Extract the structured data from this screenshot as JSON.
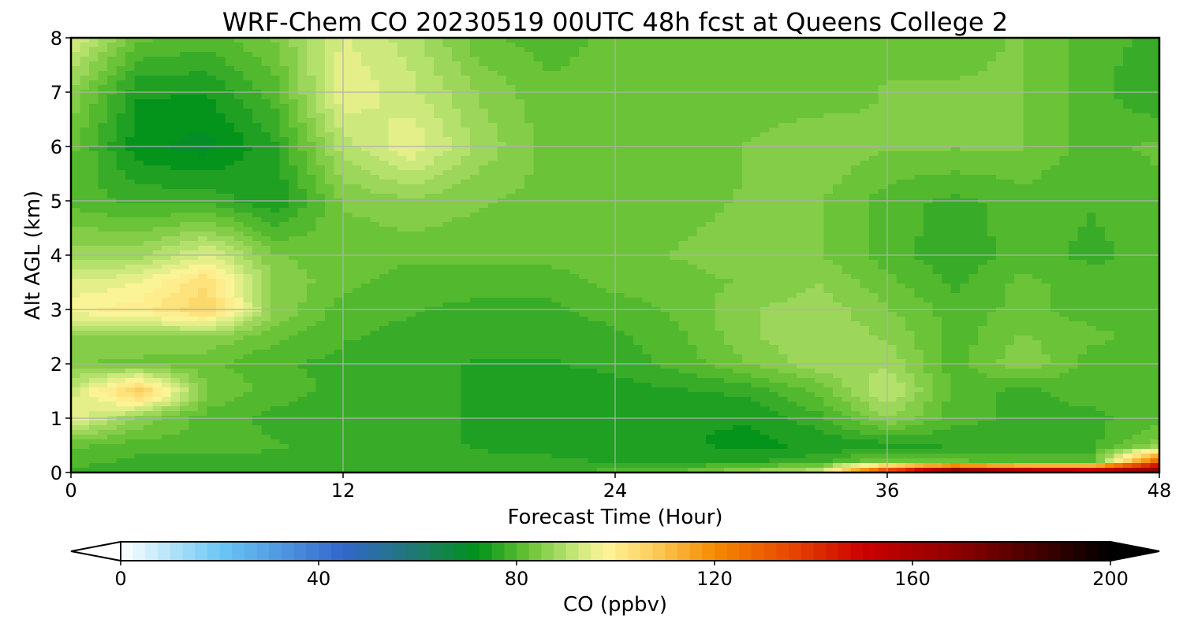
{
  "chart_data": {
    "type": "heatmap",
    "title": "WRF-Chem CO  20230519 00UTC 48h fcst at Queens College 2",
    "xlabel": "Forecast Time (Hour)",
    "ylabel": "Alt AGL (km)",
    "xlim": [
      0,
      48
    ],
    "ylim": [
      0,
      8
    ],
    "xticks": [
      "0",
      "12",
      "24",
      "36",
      "48"
    ],
    "yticks": [
      "0",
      "1",
      "2",
      "3",
      "4",
      "5",
      "6",
      "7",
      "8"
    ],
    "grid": true,
    "colorbar": {
      "label": "CO  (ppbv)",
      "range": [
        0,
        200
      ],
      "ticks": [
        "0",
        "40",
        "80",
        "120",
        "160",
        "200"
      ],
      "extend": "both",
      "stops": [
        {
          "v": 0,
          "c": "#ffffff"
        },
        {
          "v": 20,
          "c": "#6cc8f5"
        },
        {
          "v": 45,
          "c": "#3366cc"
        },
        {
          "v": 60,
          "c": "#1e7a6e"
        },
        {
          "v": 72,
          "c": "#00921a"
        },
        {
          "v": 82,
          "c": "#66c133"
        },
        {
          "v": 92,
          "c": "#c8e87a"
        },
        {
          "v": 98,
          "c": "#fff59a"
        },
        {
          "v": 108,
          "c": "#fccc5a"
        },
        {
          "v": 120,
          "c": "#f58a00"
        },
        {
          "v": 135,
          "c": "#e84800"
        },
        {
          "v": 150,
          "c": "#cc0000"
        },
        {
          "v": 170,
          "c": "#8a0000"
        },
        {
          "v": 200,
          "c": "#000000"
        }
      ]
    },
    "x": [
      0,
      3,
      6,
      9,
      12,
      15,
      18,
      21,
      24,
      27,
      30,
      33,
      36,
      39,
      42,
      45,
      48
    ],
    "y": [
      0,
      0.2,
      0.5,
      1,
      1.5,
      2,
      2.5,
      3,
      3.5,
      4,
      5,
      6,
      7,
      8
    ],
    "z": [
      [
        78,
        76,
        76,
        76,
        77,
        77,
        78,
        78,
        80,
        82,
        88,
        93,
        145,
        190,
        175,
        170,
        180
      ],
      [
        80,
        78,
        78,
        78,
        78,
        78,
        77,
        77,
        76,
        76,
        76,
        78,
        84,
        82,
        80,
        80,
        130
      ],
      [
        82,
        80,
        80,
        79,
        78,
        77,
        76,
        75,
        74,
        74,
        73,
        74,
        75,
        76,
        77,
        78,
        85
      ],
      [
        96,
        86,
        80,
        78,
        77,
        77,
        76,
        75,
        74,
        74,
        74,
        78,
        86,
        80,
        78,
        78,
        80
      ],
      [
        92,
        108,
        84,
        80,
        78,
        77,
        76,
        75,
        75,
        76,
        77,
        82,
        92,
        80,
        78,
        80,
        80
      ],
      [
        84,
        83,
        82,
        79,
        78,
        77,
        76,
        76,
        77,
        80,
        84,
        88,
        88,
        80,
        86,
        80,
        80
      ],
      [
        86,
        86,
        86,
        82,
        79,
        78,
        77,
        77,
        78,
        81,
        86,
        88,
        86,
        80,
        84,
        82,
        80
      ],
      [
        98,
        100,
        106,
        86,
        80,
        79,
        78,
        78,
        80,
        82,
        86,
        88,
        84,
        80,
        82,
        80,
        80
      ],
      [
        94,
        96,
        104,
        86,
        82,
        80,
        80,
        80,
        82,
        83,
        84,
        86,
        82,
        78,
        82,
        80,
        80
      ],
      [
        88,
        88,
        94,
        84,
        82,
        82,
        82,
        82,
        83,
        84,
        85,
        84,
        80,
        77,
        80,
        78,
        80
      ],
      [
        80,
        78,
        78,
        74,
        84,
        86,
        84,
        83,
        82,
        83,
        84,
        84,
        80,
        78,
        80,
        79,
        80
      ],
      [
        82,
        72,
        70,
        76,
        90,
        96,
        88,
        83,
        82,
        82,
        84,
        86,
        84,
        84,
        84,
        80,
        82
      ],
      [
        86,
        74,
        74,
        80,
        96,
        92,
        86,
        82,
        82,
        82,
        82,
        82,
        84,
        84,
        84,
        80,
        76
      ],
      [
        94,
        82,
        80,
        84,
        94,
        90,
        82,
        80,
        82,
        82,
        82,
        82,
        83,
        83,
        84,
        80,
        78
      ]
    ]
  }
}
